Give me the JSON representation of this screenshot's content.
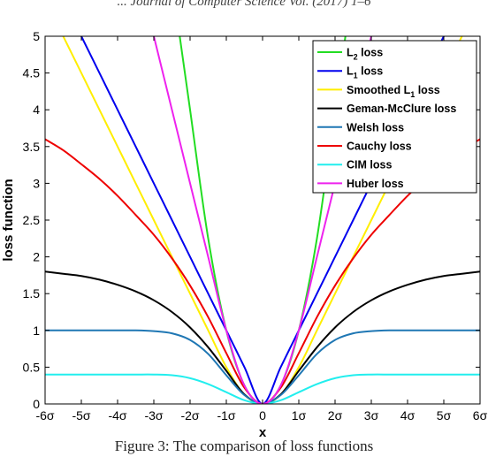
{
  "header_fragment": "... Journal of Computer Science Vol. (2017) 1–6",
  "caption": "Figure 3: The comparison of loss functions",
  "chart_data": {
    "type": "line",
    "title": "",
    "xlabel": "x",
    "ylabel": "loss function",
    "xlim": [
      -6,
      6
    ],
    "ylim": [
      0,
      5
    ],
    "x_ticks": [
      -6,
      -5,
      -4,
      -3,
      -2,
      -1,
      0,
      1,
      2,
      3,
      4,
      5,
      6
    ],
    "x_tick_labels": [
      "-6σ",
      "-5σ",
      "-4σ",
      "-3σ",
      "-2σ",
      "-1σ",
      "0",
      "1σ",
      "2σ",
      "3σ",
      "4σ",
      "5σ",
      "6σ"
    ],
    "y_ticks": [
      0,
      0.5,
      1,
      1.5,
      2,
      2.5,
      3,
      3.5,
      4,
      4.5,
      5
    ],
    "y_tick_labels": [
      "0",
      "0.5",
      "1",
      "1.5",
      "2",
      "2.5",
      "3",
      "3.5",
      "4",
      "4.5",
      "5"
    ],
    "grid": false,
    "legend_position": "top-right",
    "x": [
      -6,
      -5.5,
      -5,
      -4.5,
      -4,
      -3.5,
      -3,
      -2.5,
      -2,
      -1.5,
      -1,
      -0.5,
      0,
      0.5,
      1,
      1.5,
      2,
      2.5,
      3,
      3.5,
      4,
      4.5,
      5,
      5.5,
      6
    ],
    "series": [
      {
        "name": "L2 loss",
        "label_main": "L",
        "label_sub": "2",
        "label_rest": " loss",
        "color": "#22dd22",
        "values": [
          null,
          null,
          null,
          null,
          null,
          null,
          null,
          null,
          4.0,
          2.25,
          1.0,
          0.25,
          0,
          0.25,
          1.0,
          2.25,
          4.0,
          null,
          null,
          null,
          null,
          null,
          null,
          null,
          null
        ]
      },
      {
        "name": "L1 loss",
        "label_main": "L",
        "label_sub": "1",
        "label_rest": " loss",
        "color": "#0000ee",
        "values": [
          null,
          null,
          5.0,
          4.5,
          4.0,
          3.5,
          3.0,
          2.5,
          2.0,
          1.5,
          1.0,
          0.5,
          0,
          0.5,
          1.0,
          1.5,
          2.0,
          2.5,
          3.0,
          3.5,
          4.0,
          4.5,
          5.0,
          null,
          null
        ]
      },
      {
        "name": "Smoothed L1 loss",
        "label_main": "Smoothed L",
        "label_sub": "1",
        "label_rest": " loss",
        "color": "#ffee00",
        "values": [
          null,
          5.0,
          4.5,
          4.0,
          3.5,
          3.0,
          2.5,
          2.0,
          1.5,
          1.0,
          0.5,
          0.125,
          0,
          0.125,
          0.5,
          1.0,
          1.5,
          2.0,
          2.5,
          3.0,
          3.5,
          4.0,
          4.5,
          5.0,
          null
        ]
      },
      {
        "name": "Geman-McClure loss",
        "label_main": "Geman-McClure loss",
        "label_sub": "",
        "label_rest": "",
        "color": "#000000",
        "values": [
          1.8,
          1.77,
          1.74,
          1.69,
          1.62,
          1.53,
          1.41,
          1.25,
          1.04,
          0.77,
          0.45,
          0.13,
          0,
          0.13,
          0.45,
          0.77,
          1.04,
          1.25,
          1.41,
          1.53,
          1.62,
          1.69,
          1.74,
          1.77,
          1.8
        ]
      },
      {
        "name": "Welsh loss",
        "label_main": "Welsh loss",
        "label_sub": "",
        "label_rest": "",
        "color": "#1f77b4",
        "values": [
          1.0,
          1.0,
          1.0,
          1.0,
          1.0,
          1.0,
          0.99,
          0.96,
          0.87,
          0.68,
          0.39,
          0.12,
          0,
          0.12,
          0.39,
          0.68,
          0.87,
          0.96,
          0.99,
          1.0,
          1.0,
          1.0,
          1.0,
          1.0,
          1.0
        ]
      },
      {
        "name": "Cauchy loss",
        "label_main": "Cauchy loss",
        "label_sub": "",
        "label_rest": "",
        "color": "#ee0000",
        "values": [
          3.6,
          3.45,
          3.26,
          3.06,
          2.83,
          2.57,
          2.3,
          1.98,
          1.61,
          1.18,
          0.69,
          0.22,
          0,
          0.22,
          0.69,
          1.18,
          1.61,
          1.98,
          2.3,
          2.57,
          2.83,
          3.06,
          3.26,
          3.45,
          3.6
        ]
      },
      {
        "name": "CIM loss",
        "label_main": "CIM loss",
        "label_sub": "",
        "label_rest": "",
        "color": "#22eeee",
        "values": [
          0.4,
          0.4,
          0.4,
          0.4,
          0.4,
          0.4,
          0.4,
          0.39,
          0.35,
          0.27,
          0.16,
          0.05,
          0,
          0.05,
          0.16,
          0.27,
          0.35,
          0.39,
          0.4,
          0.4,
          0.4,
          0.4,
          0.4,
          0.4,
          0.4
        ]
      },
      {
        "name": "Huber loss",
        "label_main": "Huber loss",
        "label_sub": "",
        "label_rest": "",
        "color": "#ee22ee",
        "values": [
          null,
          null,
          null,
          null,
          null,
          null,
          5.0,
          4.0,
          3.0,
          2.0,
          1.0,
          0.25,
          0,
          0.25,
          1.0,
          2.0,
          3.0,
          4.0,
          5.0,
          null,
          null,
          null,
          null,
          null,
          null
        ]
      }
    ]
  }
}
